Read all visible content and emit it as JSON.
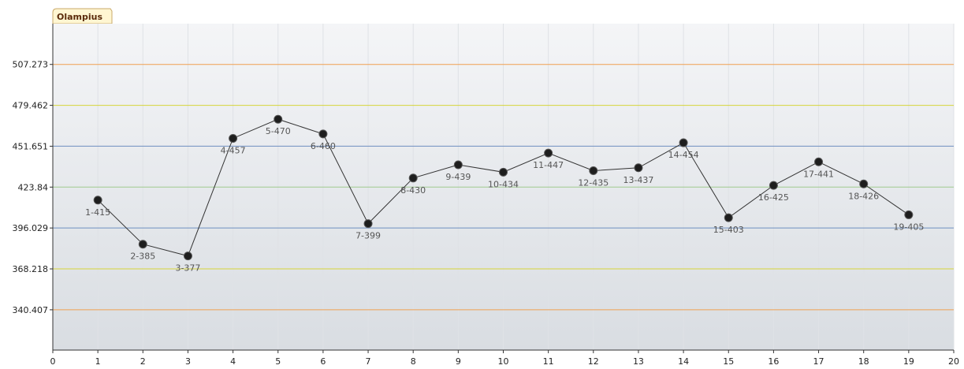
{
  "legend_tab": {
    "label": "Olampius"
  },
  "colors": {
    "plot_bg_top": "#f4f5f7",
    "plot_bg_bottom": "#d9dde2",
    "grid": "#dfe2e6",
    "axis": "#333333",
    "line": "#333333",
    "marker": "#1e1e1e",
    "tab_bg": "#fff6d2",
    "tab_border": "#c9a96a"
  },
  "chart_data": {
    "type": "line",
    "title": "",
    "xlabel": "",
    "ylabel": "",
    "xlim": [
      0,
      20
    ],
    "ylim": [
      313.0,
      535.0
    ],
    "x_ticks": [
      0,
      1,
      2,
      3,
      4,
      5,
      6,
      7,
      8,
      9,
      10,
      11,
      12,
      13,
      14,
      15,
      16,
      17,
      18,
      19,
      20
    ],
    "y_ticks": [
      "340.407",
      "368.218",
      "396.029",
      "423.84",
      "451.651",
      "479.462",
      "507.273"
    ],
    "grid": true,
    "reference_lines": [
      {
        "value": 507.273,
        "color": "#f0a050"
      },
      {
        "value": 479.462,
        "color": "#d6d43a"
      },
      {
        "value": 451.651,
        "color": "#6f8fc0"
      },
      {
        "value": 423.84,
        "color": "#9fc98f"
      },
      {
        "value": 396.029,
        "color": "#6f8fc0"
      },
      {
        "value": 368.218,
        "color": "#d6d43a"
      },
      {
        "value": 340.407,
        "color": "#f0a050"
      }
    ],
    "series": [
      {
        "x": [
          1,
          2,
          3,
          4,
          5,
          6,
          7,
          8,
          9,
          10,
          11,
          12,
          13,
          14,
          15,
          16,
          17,
          18,
          19
        ],
        "values": [
          415,
          385,
          377,
          457,
          470,
          460,
          399,
          430,
          439,
          434,
          447,
          435,
          437,
          454,
          403,
          425,
          441,
          426,
          405
        ],
        "point_labels": [
          "1-415",
          "2-385",
          "3-377",
          "4-457",
          "5-470",
          "6-460",
          "7-399",
          "8-430",
          "9-439",
          "10-434",
          "11-447",
          "12-435",
          "13-437",
          "14-454",
          "15-403",
          "16-425",
          "17-441",
          "18-426",
          "19-405"
        ]
      }
    ]
  }
}
